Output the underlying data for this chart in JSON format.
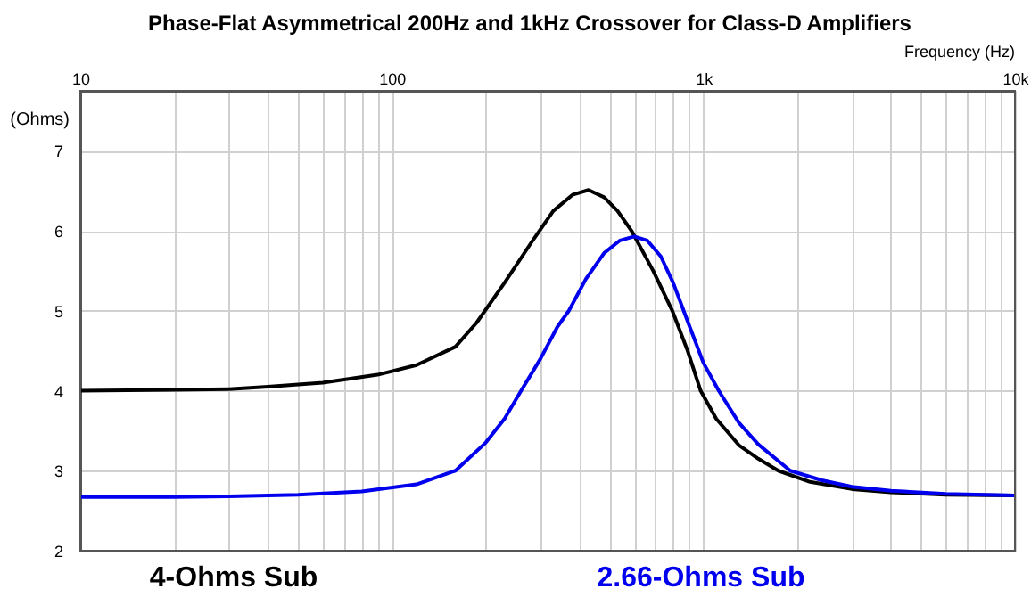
{
  "chart_data": {
    "type": "line",
    "title": "Phase-Flat Asymmetrical 200Hz and 1kHz Crossover for Class-D Amplifiers",
    "xlabel": "Frequency  (Hz)",
    "ylabel": "(Ohms)",
    "log": "x",
    "grid": true,
    "legend": "bottom",
    "line_style": "solid",
    "marker": "none",
    "xlim": [
      10,
      10000
    ],
    "ylim": [
      2,
      7.75
    ],
    "xticks": [
      10,
      {
        "value": 20,
        "label": null
      },
      {
        "value": 30,
        "label": null
      },
      {
        "value": 40,
        "label": null
      },
      {
        "value": 50,
        "label": null
      },
      {
        "value": 60,
        "label": null
      },
      {
        "value": 70,
        "label": null
      },
      {
        "value": 80,
        "label": null
      },
      {
        "value": 90,
        "label": null
      },
      100,
      {
        "value": 200,
        "label": null
      },
      {
        "value": 300,
        "label": null
      },
      {
        "value": 400,
        "label": null
      },
      {
        "value": 500,
        "label": null
      },
      {
        "value": 600,
        "label": null
      },
      {
        "value": 700,
        "label": null
      },
      {
        "value": 800,
        "label": null
      },
      {
        "value": 900,
        "label": null
      },
      {
        "value": 1000,
        "label": "1k"
      },
      {
        "value": 2000,
        "label": null
      },
      {
        "value": 3000,
        "label": null
      },
      {
        "value": 4000,
        "label": null
      },
      {
        "value": 5000,
        "label": null
      },
      {
        "value": 6000,
        "label": null
      },
      {
        "value": 7000,
        "label": null
      },
      {
        "value": 8000,
        "label": null
      },
      {
        "value": 9000,
        "label": null
      },
      {
        "value": 10000,
        "label": "10k"
      }
    ],
    "yticks": [
      2,
      3,
      4,
      5,
      6,
      7
    ],
    "series": [
      {
        "name": "4-Ohms Sub",
        "color": "#000000",
        "x": [
          10,
          20,
          30,
          40,
          60,
          90,
          120,
          160,
          187,
          230,
          280,
          330,
          380,
          428,
          480,
          530,
          588,
          690,
          795,
          890,
          980,
          1100,
          1300,
          1500,
          1740,
          2200,
          3000,
          4000,
          6000,
          10000
        ],
        "values": [
          4.0,
          4.01,
          4.02,
          4.05,
          4.1,
          4.2,
          4.32,
          4.55,
          4.85,
          5.35,
          5.85,
          6.25,
          6.45,
          6.51,
          6.42,
          6.25,
          6.0,
          5.5,
          5.0,
          4.5,
          4.0,
          3.65,
          3.32,
          3.15,
          3.0,
          2.86,
          2.77,
          2.73,
          2.7,
          2.69
        ]
      },
      {
        "name": "2.66-Ohms Sub",
        "color": "#0000ee",
        "x": [
          10,
          20,
          30,
          50,
          80,
          120,
          160,
          200,
          230,
          260,
          300,
          340,
          370,
          420,
          480,
          540,
          600,
          660,
          730,
          800,
          890,
          1000,
          1120,
          1300,
          1500,
          1900,
          2400,
          3000,
          4000,
          6000,
          10000
        ],
        "values": [
          2.67,
          2.67,
          2.68,
          2.7,
          2.74,
          2.83,
          3.0,
          3.35,
          3.65,
          4.0,
          4.4,
          4.8,
          5.0,
          5.4,
          5.72,
          5.88,
          5.93,
          5.88,
          5.68,
          5.35,
          4.87,
          4.35,
          4.0,
          3.6,
          3.33,
          3.0,
          2.88,
          2.8,
          2.75,
          2.71,
          2.69
        ]
      }
    ]
  }
}
